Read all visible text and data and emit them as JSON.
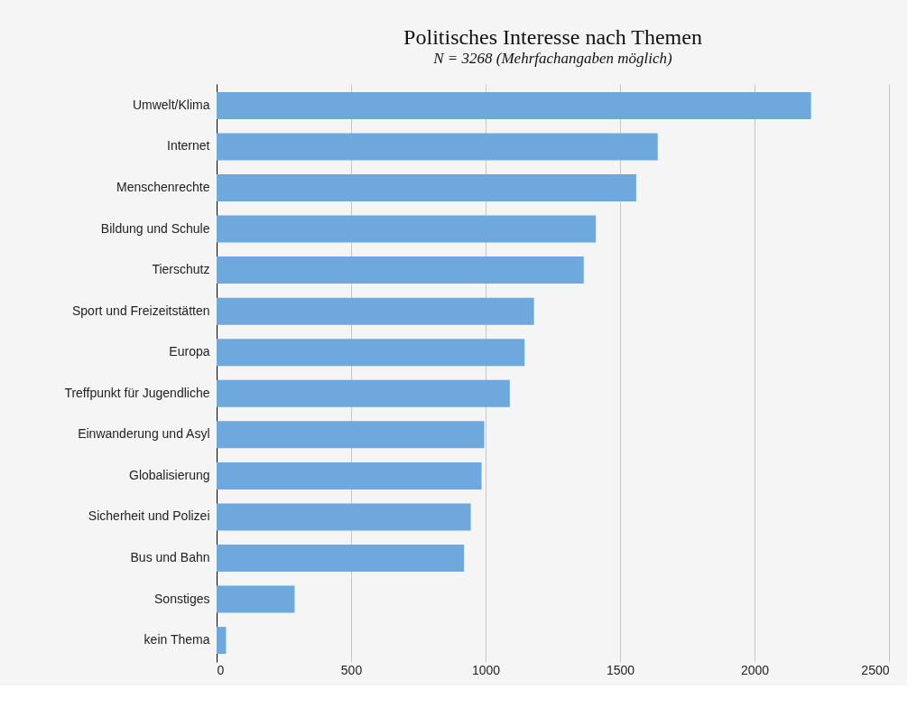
{
  "chart_data": {
    "type": "bar",
    "orientation": "horizontal",
    "title": "Politisches Interesse nach Themen",
    "subtitle": "N = 3268 (Mehrfachangaben möglich)",
    "categories": [
      "Umwelt/Klima",
      "Internet",
      "Menschenrechte",
      "Bildung und Schule",
      "Tierschutz",
      "Sport und Freizeitstätten",
      "Europa",
      "Treffpunkt für Jugendliche",
      "Einwanderung und Asyl",
      "Globalisierung",
      "Sicherheit und Polizei",
      "Bus und Bahn",
      "Sonstiges",
      "kein Thema"
    ],
    "values": [
      2210,
      1640,
      1560,
      1410,
      1365,
      1180,
      1145,
      1090,
      995,
      985,
      945,
      920,
      290,
      35
    ],
    "color": "#6fa8dc",
    "xlim": [
      0,
      2500
    ],
    "xticks": [
      0,
      500,
      1000,
      1500,
      2000,
      2500
    ],
    "grid": "x"
  }
}
